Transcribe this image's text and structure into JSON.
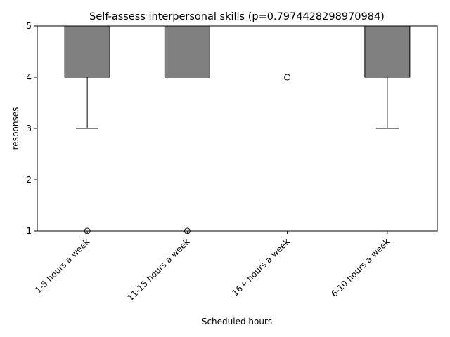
{
  "chart_data": {
    "type": "box",
    "title": "Self-assess interpersonal skills (p=0.7974428298970984)",
    "xlabel": "Scheduled hours",
    "ylabel": "responses",
    "ylim": [
      1,
      5
    ],
    "yticks": [
      "1",
      "2",
      "3",
      "4",
      "5"
    ],
    "categories": [
      "1-5 hours a week",
      "11-15 hours a week",
      "16+ hours a week",
      "6-10 hours a week"
    ],
    "boxes": [
      {
        "category": "1-5 hours a week",
        "whisker_low": 3,
        "q1": 4,
        "median": 5,
        "q3": 5,
        "whisker_high": 5,
        "outliers": [
          1
        ]
      },
      {
        "category": "11-15 hours a week",
        "whisker_low": 4,
        "q1": 4,
        "median": 5,
        "q3": 5,
        "whisker_high": 5,
        "outliers": [
          1
        ]
      },
      {
        "category": "16+ hours a week",
        "whisker_low": 5,
        "q1": 5,
        "median": 5,
        "q3": 5,
        "whisker_high": 5,
        "outliers": [
          4
        ]
      },
      {
        "category": "6-10 hours a week",
        "whisker_low": 3,
        "q1": 4,
        "median": 5,
        "q3": 5,
        "whisker_high": 5,
        "outliers": []
      }
    ],
    "box_color": "#808080",
    "line_color": "#000000",
    "grid": false,
    "legend": "none",
    "xtick_rotation": 45
  }
}
